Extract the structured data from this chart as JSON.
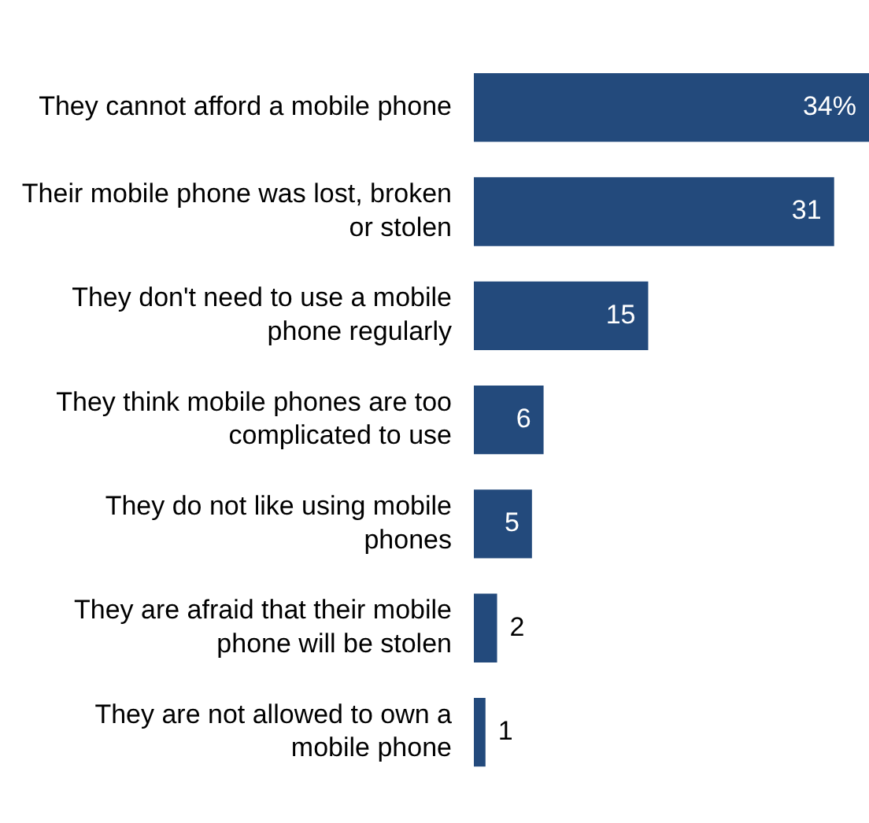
{
  "chart_data": {
    "type": "bar",
    "orientation": "horizontal",
    "categories": [
      "They cannot afford a mobile phone",
      "Their mobile phone was lost, broken or stolen",
      "They don't need to use a mobile phone regularly",
      "They think mobile phones are too complicated to use",
      "They do not like using mobile phones",
      "They are afraid that their mobile phone will be stolen",
      "They are not allowed to own a mobile phone"
    ],
    "series": [
      {
        "color": "#234a7c",
        "values": [
          34,
          31,
          15,
          6,
          5,
          2,
          1
        ],
        "value_labels": [
          "34%",
          "31",
          "15",
          "6",
          "5",
          "2",
          "1"
        ]
      }
    ],
    "grid": false,
    "legend": false
  }
}
